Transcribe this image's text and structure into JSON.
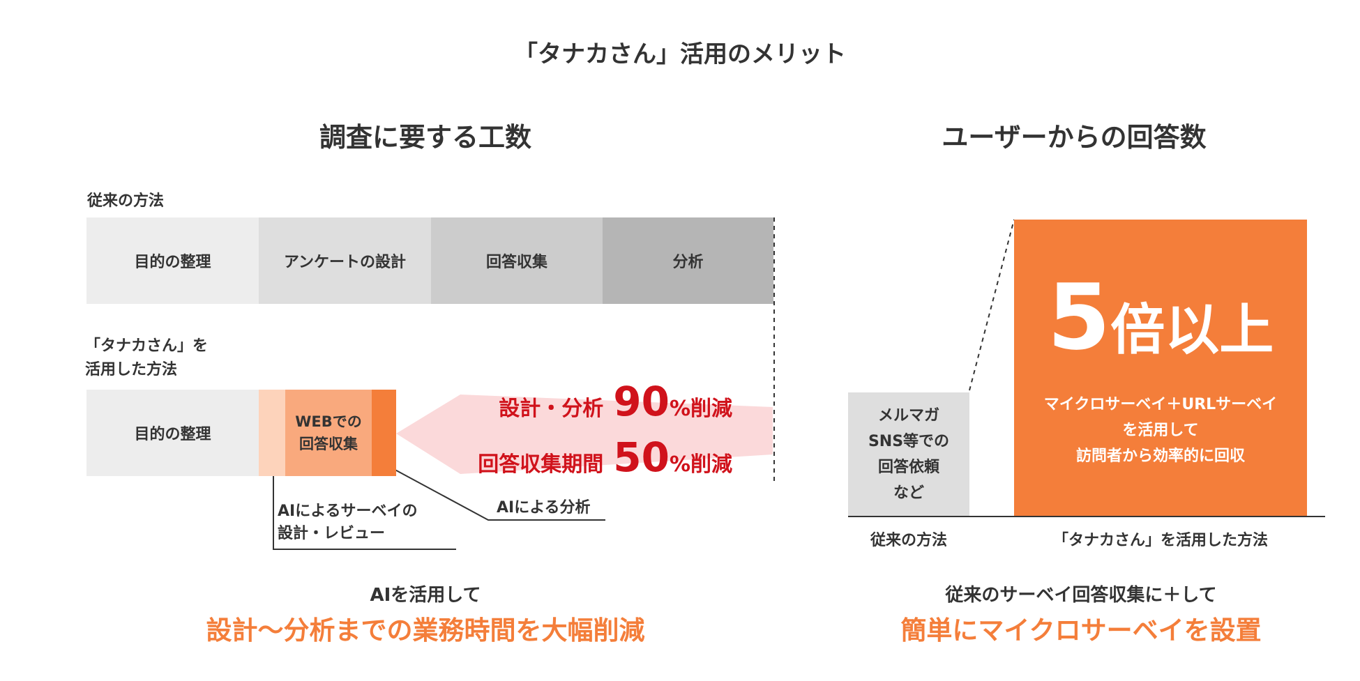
{
  "title": "「タナカさん」活用のメリット",
  "left": {
    "heading": "調査に要する工数",
    "conventional_label": "従来の方法",
    "conventional_steps": [
      "目的の整理",
      "アンケートの設計",
      "回答収集",
      "分析"
    ],
    "tanaka_label_line1": "「タナカさん」を",
    "tanaka_label_line2": "活用した方法",
    "tanaka_step1": "目的の整理",
    "tanaka_step2_line1": "WEBでの",
    "tanaka_step2_line2": "回答収集",
    "reduction1_text": "設計・分析",
    "reduction1_value": "90",
    "reduction1_suffix": "%削減",
    "reduction2_text": "回答収集期間",
    "reduction2_value": "50",
    "reduction2_suffix": "%削減",
    "callout_ai_survey_line1": "AIによるサーベイの",
    "callout_ai_survey_line2": "設計・レビュー",
    "callout_ai_analysis": "AIによる分析",
    "bottom_line1": "AIを活用して",
    "bottom_line2": "設計〜分析までの業務時間を大幅削減"
  },
  "right": {
    "heading": "ユーザーからの回答数",
    "small_box_lines": [
      "メルマガ",
      "SNS等での",
      "回答依頼",
      "など"
    ],
    "big_value_number": "5",
    "big_value_text": "倍以上",
    "big_box_lines": [
      "マイクロサーベイ＋URLサーベイ",
      "を活用して",
      "訪問者から効率的に回収"
    ],
    "x_label_conventional": "従来の方法",
    "x_label_tanaka": "「タナカさん」を活用した方法",
    "bottom_line1": "従来のサーベイ回答収集に＋して",
    "bottom_line2": "簡単にマイクロサーベイを設置"
  },
  "colors": {
    "accent_orange": "#f47e3a",
    "reduction_red": "#d0121b",
    "gray1": "#ededed",
    "gray2": "#dedede",
    "gray3": "#cccccc",
    "gray4": "#b5b5b5"
  }
}
